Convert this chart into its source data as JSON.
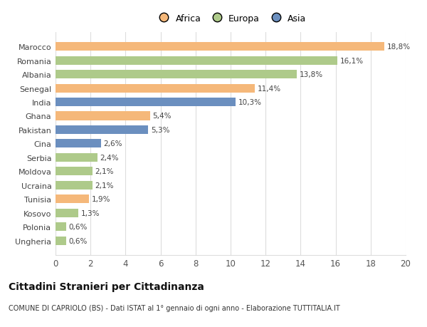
{
  "countries": [
    "Marocco",
    "Romania",
    "Albania",
    "Senegal",
    "India",
    "Ghana",
    "Pakistan",
    "Cina",
    "Serbia",
    "Moldova",
    "Ucraina",
    "Tunisia",
    "Kosovo",
    "Polonia",
    "Ungheria"
  ],
  "values": [
    18.8,
    16.1,
    13.8,
    11.4,
    10.3,
    5.4,
    5.3,
    2.6,
    2.4,
    2.1,
    2.1,
    1.9,
    1.3,
    0.6,
    0.6
  ],
  "labels": [
    "18,8%",
    "16,1%",
    "13,8%",
    "11,4%",
    "10,3%",
    "5,4%",
    "5,3%",
    "2,6%",
    "2,4%",
    "2,1%",
    "2,1%",
    "1,9%",
    "1,3%",
    "0,6%",
    "0,6%"
  ],
  "colors": [
    "#F5B87A",
    "#AECA8A",
    "#AECA8A",
    "#F5B87A",
    "#6B8FBF",
    "#F5B87A",
    "#6B8FBF",
    "#6B8FBF",
    "#AECA8A",
    "#AECA8A",
    "#AECA8A",
    "#F5B87A",
    "#AECA8A",
    "#AECA8A",
    "#AECA8A"
  ],
  "legend_labels": [
    "Africa",
    "Europa",
    "Asia"
  ],
  "legend_colors": [
    "#F5B87A",
    "#AECA8A",
    "#6B8FBF"
  ],
  "title": "Cittadini Stranieri per Cittadinanza",
  "subtitle": "COMUNE DI CAPRIOLO (BS) - Dati ISTAT al 1° gennaio di ogni anno - Elaborazione TUTTITALIA.IT",
  "xlim": [
    0,
    20
  ],
  "xticks": [
    0,
    2,
    4,
    6,
    8,
    10,
    12,
    14,
    16,
    18,
    20
  ],
  "background_color": "#ffffff",
  "grid_color": "#dddddd",
  "bar_height": 0.62
}
